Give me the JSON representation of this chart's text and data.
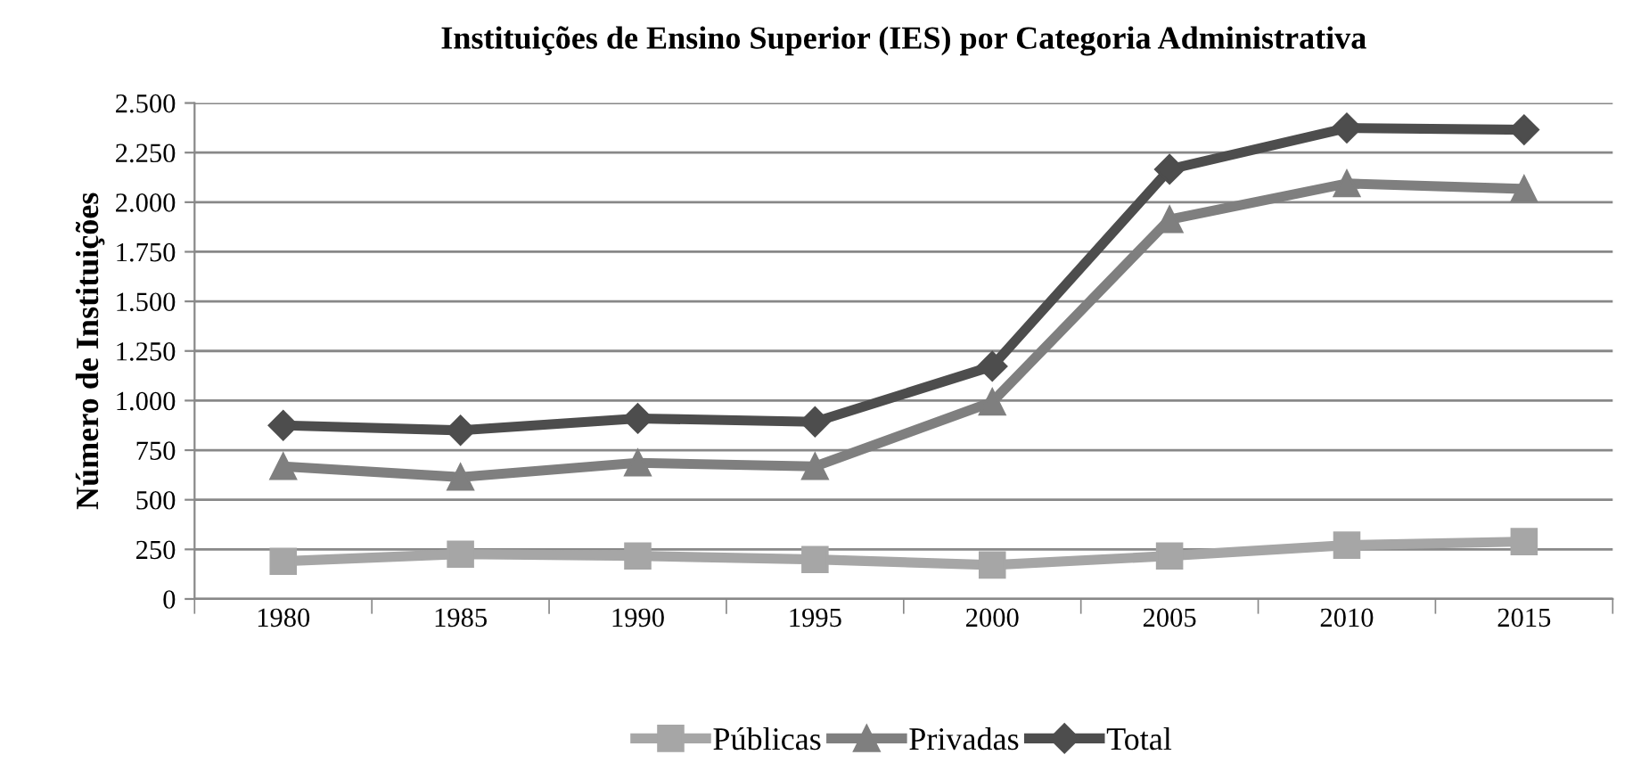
{
  "chart_data": {
    "type": "line",
    "title": "Instituições de Ensino Superior (IES) por Categoria Administrativa",
    "ylabel": "Número de Instituições",
    "categories": [
      "1980",
      "1985",
      "1990",
      "1995",
      "2000",
      "2005",
      "2010",
      "2015"
    ],
    "series": [
      {
        "name": "Públicas",
        "color": "#a6a6a6",
        "marker": "square",
        "values": [
          190,
          226,
          217,
          199,
          171,
          217,
          271,
          289
        ]
      },
      {
        "name": "Privadas",
        "color": "#7f7f7f",
        "marker": "triangle",
        "values": [
          668,
          614,
          686,
          668,
          993,
          1913,
          2094,
          2067
        ]
      },
      {
        "name": "Total",
        "color": "#4d4d4d",
        "marker": "diamond",
        "values": [
          875,
          850,
          910,
          893,
          1173,
          2166,
          2374,
          2365
        ]
      }
    ],
    "ylim": [
      0,
      2500
    ],
    "yticks": [
      0,
      250,
      500,
      750,
      {
        "value": 1000,
        "label": "1.000"
      },
      {
        "value": 1250,
        "label": "1.250"
      },
      {
        "value": 1500,
        "label": "1.500"
      },
      {
        "value": 1750,
        "label": "1.750"
      },
      {
        "value": 2000,
        "label": "2.000"
      },
      {
        "value": 2250,
        "label": "2.250"
      },
      {
        "value": 2500,
        "label": "2.500"
      }
    ],
    "grid": "y",
    "legend": "bottom",
    "line_style": "solid"
  }
}
